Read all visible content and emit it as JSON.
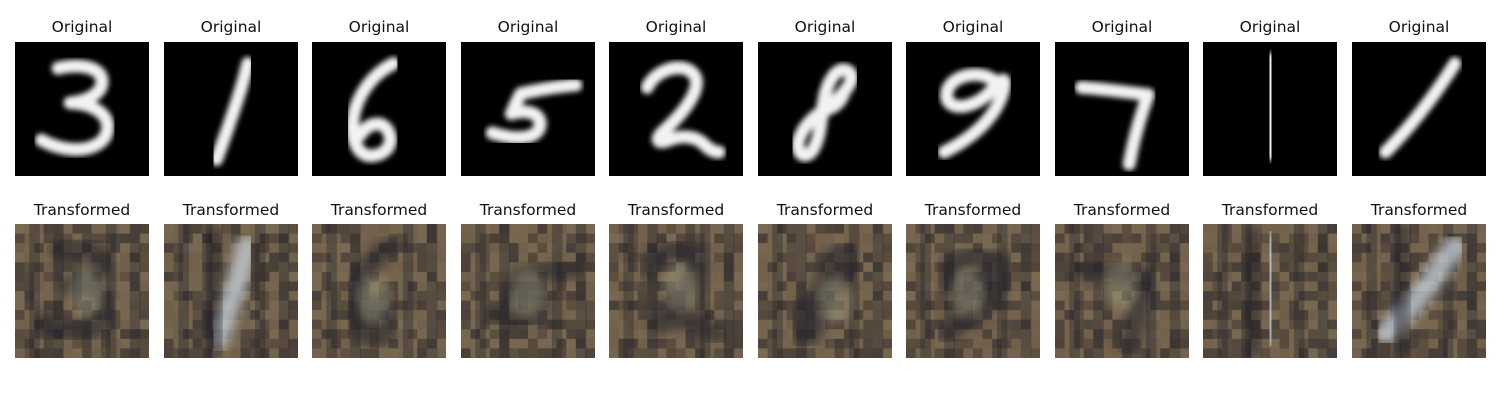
{
  "figure": {
    "rows": [
      {
        "id": "original",
        "title": "Original",
        "items": [
          {
            "digit": 3
          },
          {
            "digit": 1
          },
          {
            "digit": 6
          },
          {
            "digit": 5
          },
          {
            "digit": 2
          },
          {
            "digit": 8
          },
          {
            "digit": 9
          },
          {
            "digit": 7
          },
          {
            "digit": 1
          },
          {
            "digit": 1
          }
        ]
      },
      {
        "id": "transformed",
        "title": "Transformed",
        "items": [
          {
            "digit": 3
          },
          {
            "digit": 1
          },
          {
            "digit": 6
          },
          {
            "digit": 5
          },
          {
            "digit": 2
          },
          {
            "digit": 8
          },
          {
            "digit": 9
          },
          {
            "digit": 7
          },
          {
            "digit": 1
          },
          {
            "digit": 1
          }
        ]
      }
    ],
    "colors": {
      "original_background": "#000000",
      "original_stroke": "#f2f2f2",
      "transformed_base": "#6b5a45",
      "transformed_dark": "#22222a",
      "transformed_light": "#c9d4df"
    }
  }
}
